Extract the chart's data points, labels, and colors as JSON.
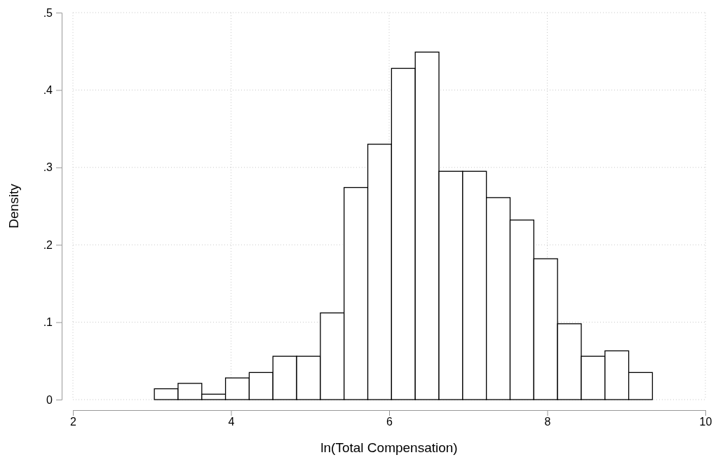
{
  "chart_data": {
    "type": "histogram",
    "xlabel": "ln(Total Compensation)",
    "ylabel": "Density",
    "bins": [
      3.03,
      3.33,
      3.63,
      3.93,
      4.23,
      4.53,
      4.83,
      5.13,
      5.43,
      5.73,
      6.03,
      6.33,
      6.63,
      6.93,
      7.23,
      7.53,
      7.83,
      8.13,
      8.43,
      8.73,
      9.03,
      9.33
    ],
    "values": [
      0.014,
      0.021,
      0.007,
      0.028,
      0.035,
      0.056,
      0.056,
      0.112,
      0.274,
      0.33,
      0.428,
      0.449,
      0.295,
      0.295,
      0.261,
      0.232,
      0.182,
      0.098,
      0.056,
      0.063,
      0.035
    ],
    "color": "#ffffff",
    "xlim": [
      2,
      10
    ],
    "xticks": [
      2,
      4,
      6,
      8,
      10
    ],
    "ylim": [
      0,
      0.5
    ],
    "yticks": [
      0,
      {
        "value": 0.1,
        "label": ".1"
      },
      {
        "value": 0.2,
        "label": ".2"
      },
      {
        "value": 0.3,
        "label": ".3"
      },
      {
        "value": 0.4,
        "label": ".4"
      },
      {
        "value": 0.5,
        "label": ".5"
      }
    ],
    "grid": true
  }
}
